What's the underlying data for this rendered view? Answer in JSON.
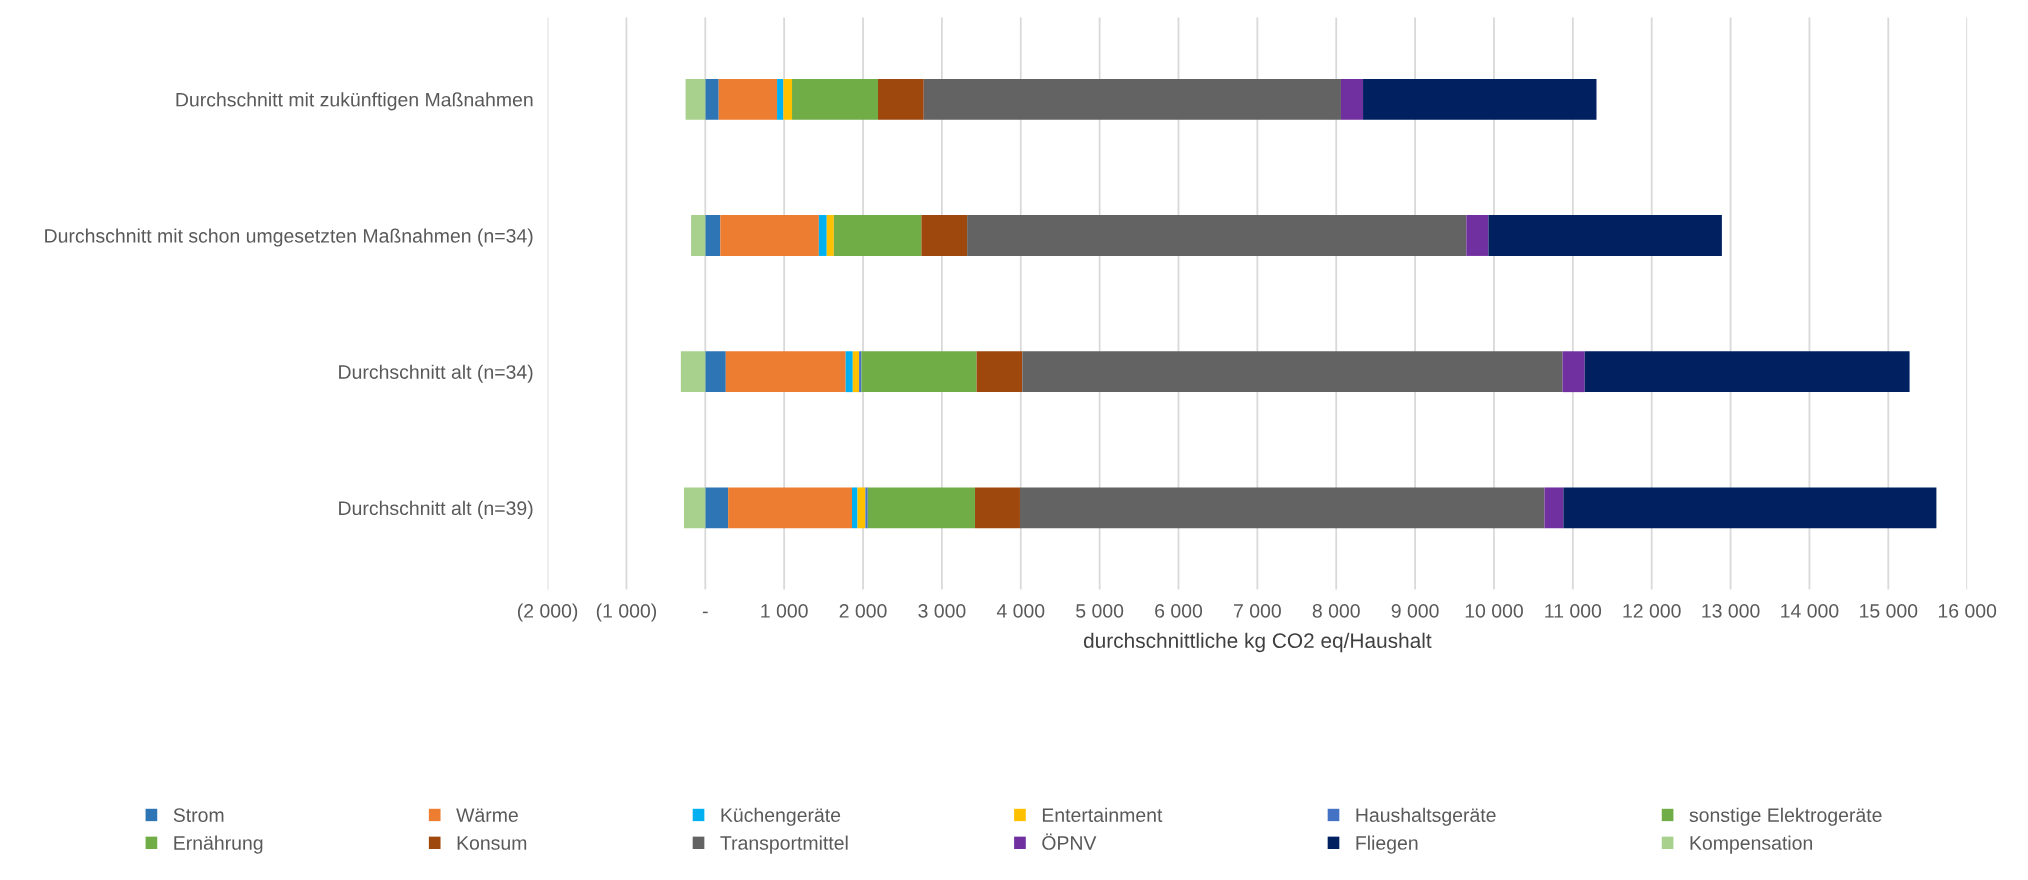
{
  "chart_data": {
    "type": "bar",
    "orientation": "horizontal",
    "stacked": true,
    "categories": [
      "Durchschnitt mit zukünftigen Maßnahmen",
      "Durchschnitt mit schon umgesetzten Maßnahmen (n=34)",
      "Durchschnitt alt (n=34)",
      "Durchschnitt alt (n=39)"
    ],
    "series": [
      {
        "name": "Strom",
        "color": "#2e75b6",
        "values": [
          170,
          190,
          260,
          290
        ]
      },
      {
        "name": "Wärme",
        "color": "#ed7d31",
        "values": [
          740,
          1250,
          1520,
          1570
        ]
      },
      {
        "name": "Küchengeräte",
        "color": "#00b0f0",
        "values": [
          80,
          100,
          90,
          70
        ]
      },
      {
        "name": "Entertainment",
        "color": "#ffc000",
        "values": [
          110,
          90,
          80,
          100
        ]
      },
      {
        "name": "Haushaltsgeräte",
        "color": "#4472c4",
        "values": [
          0,
          0,
          30,
          30
        ]
      },
      {
        "name": "sonstige Elektrogeräte",
        "color": "#70ad47",
        "values": [
          0,
          0,
          0,
          0
        ]
      },
      {
        "name": "Ernährung",
        "color": "#70ad47",
        "values": [
          1090,
          1110,
          1460,
          1360
        ]
      },
      {
        "name": "Konsum",
        "color": "#9e480e",
        "values": [
          580,
          580,
          580,
          570
        ]
      },
      {
        "name": "Transportmittel",
        "color": "#636363",
        "values": [
          5290,
          6330,
          6850,
          6650
        ]
      },
      {
        "name": "ÖPNV",
        "color": "#7030a0",
        "values": [
          280,
          280,
          280,
          240
        ]
      },
      {
        "name": "Fliegen",
        "color": "#002060",
        "values": [
          2960,
          2960,
          4120,
          4730
        ]
      },
      {
        "name": "Kompensation",
        "color": "#a9d18e",
        "values": [
          -250,
          -180,
          -310,
          -270
        ]
      }
    ],
    "xlim": [
      -2000,
      16000
    ],
    "xticks": [
      {
        "value": -2000,
        "label": "(2 000)"
      },
      {
        "value": -1000,
        "label": "(1 000)"
      },
      {
        "value": 0,
        "label": "-"
      },
      {
        "value": 1000,
        "label": "1 000"
      },
      {
        "value": 2000,
        "label": "2 000"
      },
      {
        "value": 3000,
        "label": "3 000"
      },
      {
        "value": 4000,
        "label": "4 000"
      },
      {
        "value": 5000,
        "label": "5 000"
      },
      {
        "value": 6000,
        "label": "6 000"
      },
      {
        "value": 7000,
        "label": "7 000"
      },
      {
        "value": 8000,
        "label": "8 000"
      },
      {
        "value": 9000,
        "label": "9 000"
      },
      {
        "value": 10000,
        "label": "10 000"
      },
      {
        "value": 11000,
        "label": "11 000"
      },
      {
        "value": 12000,
        "label": "12 000"
      },
      {
        "value": 13000,
        "label": "13 000"
      },
      {
        "value": 14000,
        "label": "14 000"
      },
      {
        "value": 15000,
        "label": "15 000"
      },
      {
        "value": 16000,
        "label": "16 000"
      }
    ],
    "xlabel": "durchschnittliche kg CO2 eq/Haushalt",
    "grid": "x",
    "legend": "bottom"
  }
}
